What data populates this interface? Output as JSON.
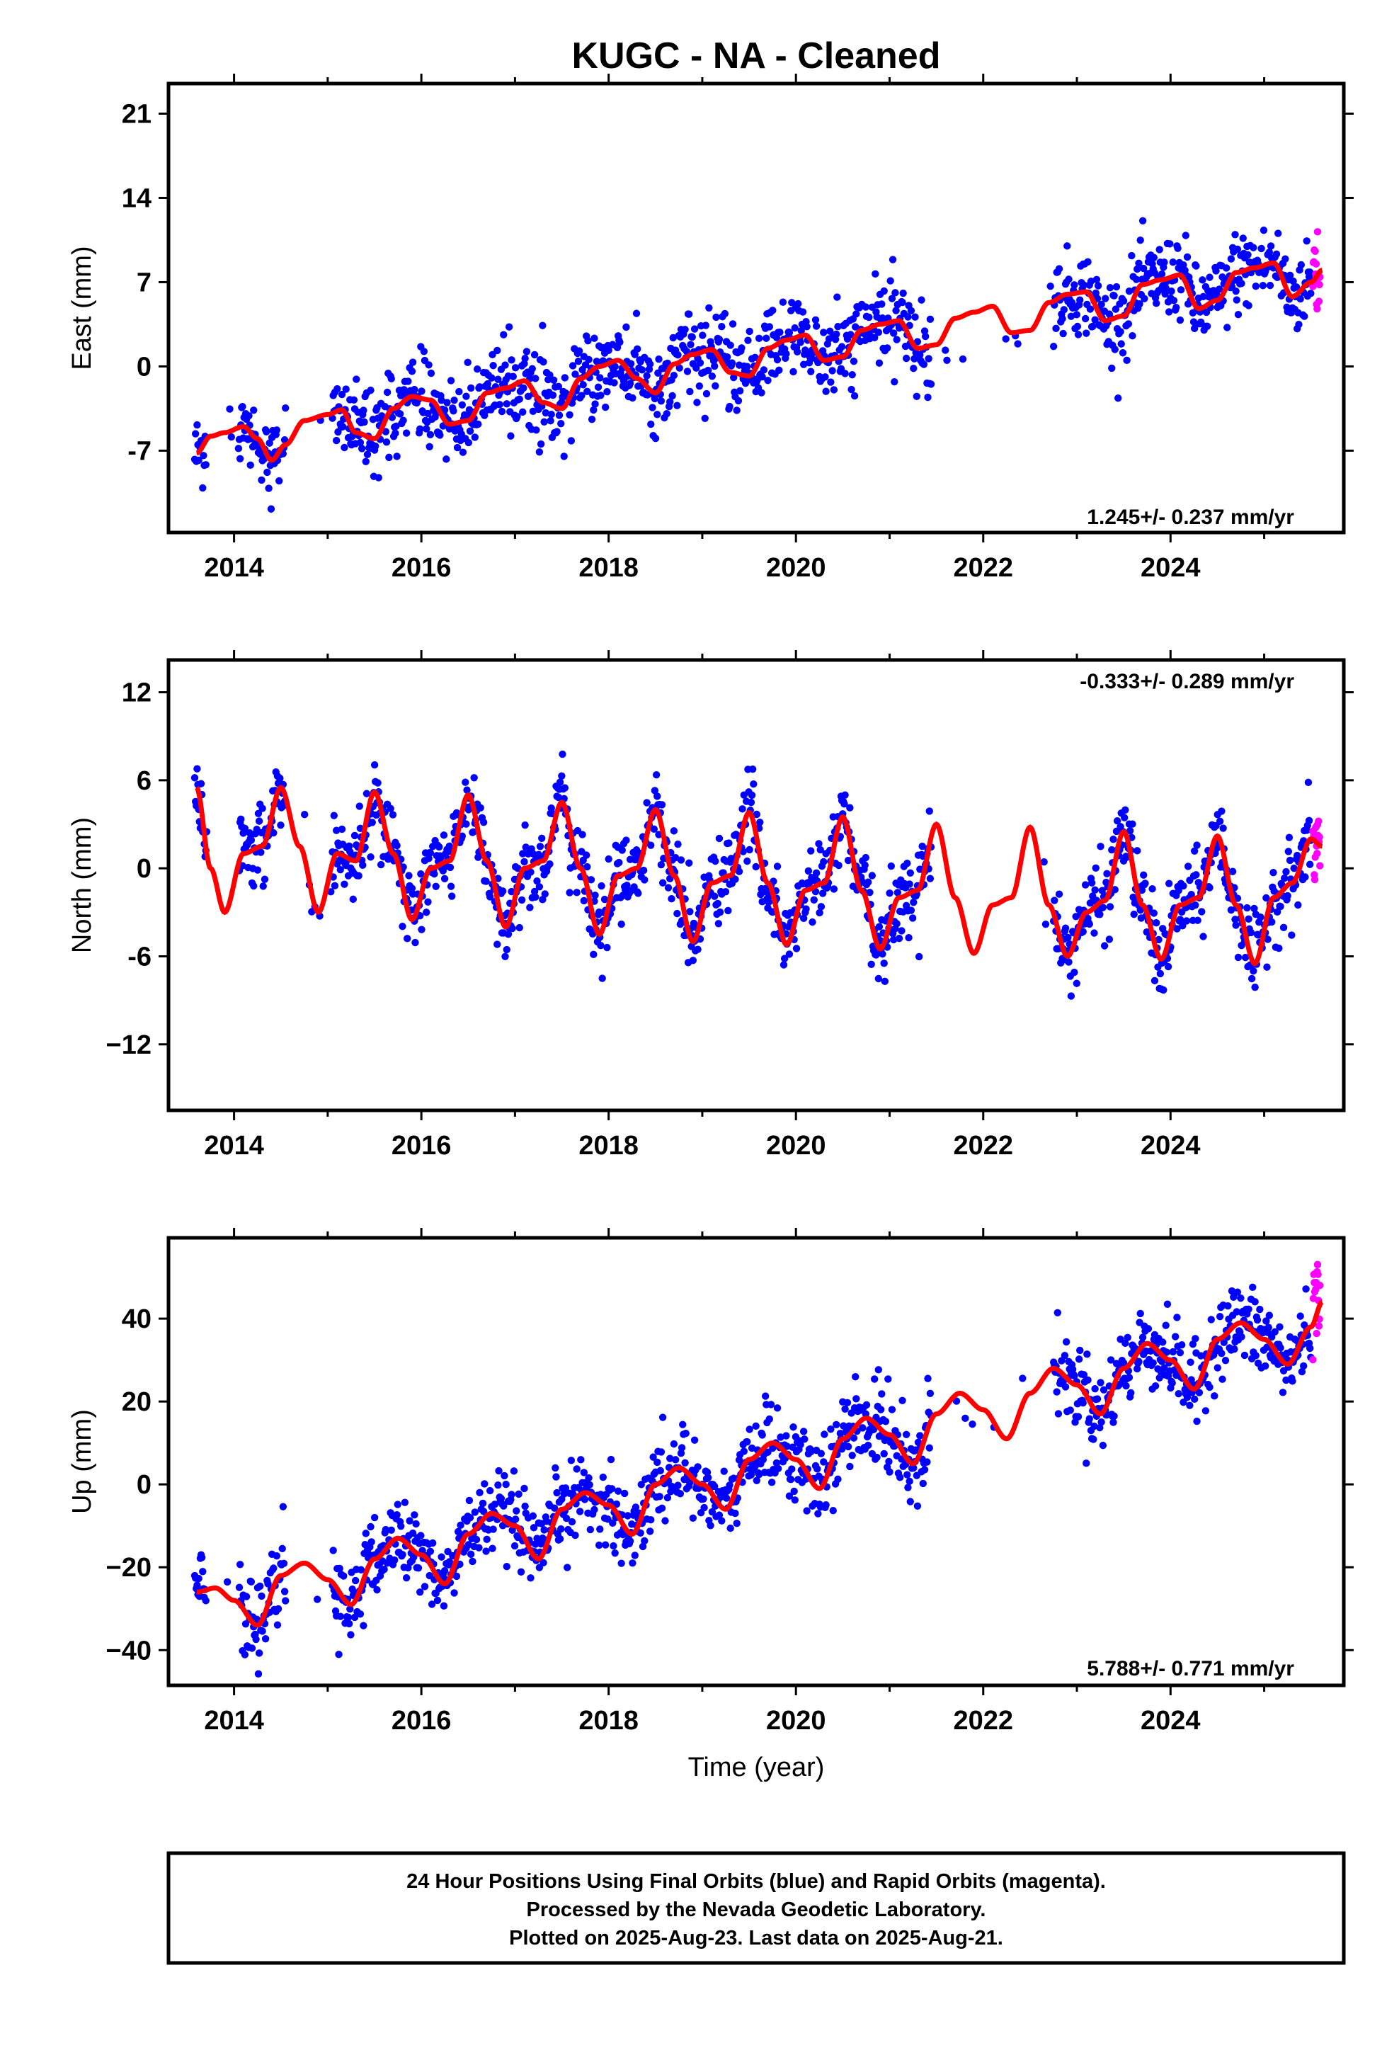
{
  "title": "KUGC  - NA - Cleaned",
  "xlabel": "Time (year)",
  "colors": {
    "final": "#0000ff",
    "rapid": "#ff00ff",
    "model": "#ff0000",
    "frame": "#000000"
  },
  "footer": {
    "line1": "24 Hour Positions Using Final Orbits (blue) and Rapid Orbits (magenta).",
    "line2": "Processed by the Nevada Geodetic Laboratory.",
    "line3": "Plotted on 2025-Aug-23. Last data on 2025-Aug-21."
  },
  "chart_data": [
    {
      "type": "scatter",
      "component": "east",
      "ylabel": "East (mm)",
      "rate": "1.245+/- 0.237 mm/yr",
      "xlim": [
        2013.3,
        2025.85
      ],
      "ylim": [
        -13.8,
        23.5
      ],
      "xticks": [
        2014,
        2016,
        2018,
        2020,
        2022,
        2024
      ],
      "yticks": [
        21,
        14,
        7,
        0,
        -7
      ],
      "ytick_labels": [
        "21",
        "14",
        "7",
        "0",
        "-7"
      ],
      "series": [
        {
          "x": [
            2013.6,
            2013.75,
            2013.9,
            2014.1,
            2014.25,
            2014.4,
            2014.55,
            2014.75,
            2015.0,
            2015.15,
            2015.3,
            2015.5,
            2015.7,
            2015.9,
            2016.1,
            2016.3,
            2016.5,
            2016.7,
            2016.9,
            2017.1,
            2017.3,
            2017.5,
            2017.7,
            2017.9,
            2018.1,
            2018.3,
            2018.5,
            2018.7,
            2018.9,
            2019.1,
            2019.3,
            2019.5,
            2019.7,
            2019.9,
            2020.1,
            2020.3,
            2020.5,
            2020.7,
            2020.9,
            2021.1,
            2021.3,
            2021.5,
            2021.7,
            2021.9,
            2022.1,
            2022.3,
            2022.5,
            2022.7,
            2022.9,
            2023.1,
            2023.3,
            2023.5,
            2023.7,
            2023.9,
            2024.1,
            2024.3,
            2024.5,
            2024.7,
            2024.9,
            2025.1,
            2025.3,
            2025.5,
            2025.62
          ],
          "y": [
            -7.2,
            -5.8,
            -5.5,
            -5.0,
            -6.0,
            -7.8,
            -6.5,
            -4.5,
            -4.0,
            -3.6,
            -5.5,
            -6.0,
            -3.5,
            -2.5,
            -2.8,
            -4.8,
            -4.5,
            -2.2,
            -1.8,
            -1.2,
            -3.0,
            -3.5,
            -1.0,
            0.0,
            0.5,
            -1.0,
            -2.2,
            0.2,
            1.0,
            1.4,
            -0.5,
            -0.8,
            1.5,
            2.2,
            2.6,
            0.5,
            0.8,
            3.0,
            3.5,
            3.8,
            1.5,
            1.8,
            4.0,
            4.5,
            5.0,
            2.8,
            3.0,
            5.3,
            6.0,
            6.2,
            3.8,
            4.2,
            6.8,
            7.2,
            7.6,
            4.8,
            5.5,
            7.8,
            8.2,
            8.6,
            5.8,
            7.0,
            8.0
          ],
          "name": ""
        }
      ]
    },
    {
      "type": "scatter",
      "component": "north",
      "ylabel": "North (mm)",
      "rate": "-0.333+/- 0.289 mm/yr",
      "xlim": [
        2013.3,
        2025.85
      ],
      "ylim": [
        -16.5,
        14.2
      ],
      "xticks": [
        2014,
        2016,
        2018,
        2020,
        2022,
        2024
      ],
      "yticks": [
        12,
        6,
        0,
        -6,
        -12
      ],
      "ytick_labels": [
        "12",
        "6",
        "0",
        "-6",
        "−12"
      ],
      "series": [
        {
          "x": [
            2013.6,
            2013.75,
            2013.9,
            2014.1,
            2014.3,
            2014.5,
            2014.7,
            2014.9,
            2015.1,
            2015.3,
            2015.5,
            2015.7,
            2015.9,
            2016.1,
            2016.3,
            2016.5,
            2016.7,
            2016.9,
            2017.1,
            2017.3,
            2017.5,
            2017.7,
            2017.9,
            2018.1,
            2018.3,
            2018.5,
            2018.7,
            2018.9,
            2019.1,
            2019.3,
            2019.5,
            2019.7,
            2019.9,
            2020.1,
            2020.3,
            2020.5,
            2020.7,
            2020.9,
            2021.1,
            2021.3,
            2021.5,
            2021.7,
            2021.9,
            2022.1,
            2022.3,
            2022.5,
            2022.7,
            2022.9,
            2023.1,
            2023.3,
            2023.5,
            2023.7,
            2023.9,
            2024.1,
            2024.3,
            2024.5,
            2024.7,
            2024.9,
            2025.1,
            2025.3,
            2025.5,
            2025.62
          ],
          "y": [
            5.5,
            0.0,
            -3.0,
            1.0,
            1.5,
            5.5,
            1.5,
            -3.0,
            1.0,
            0.5,
            5.2,
            1.0,
            -3.5,
            0.0,
            0.5,
            5.0,
            0.5,
            -4.0,
            0.0,
            0.5,
            4.5,
            0.0,
            -4.5,
            -0.5,
            0.0,
            4.0,
            -0.5,
            -5.0,
            -1.0,
            -0.5,
            3.8,
            -1.0,
            -5.2,
            -1.5,
            -1.0,
            3.5,
            -1.5,
            -5.5,
            -2.0,
            -1.5,
            3.0,
            -2.0,
            -5.8,
            -2.5,
            -2.0,
            2.8,
            -2.5,
            -6.0,
            -3.0,
            -2.2,
            2.5,
            -2.5,
            -6.2,
            -2.5,
            -2.0,
            2.2,
            -2.5,
            -6.5,
            -2.0,
            -1.0,
            2.0,
            1.5
          ],
          "name": ""
        }
      ]
    },
    {
      "type": "scatter",
      "component": "up",
      "ylabel": "Up (mm)",
      "rate": "5.788+/- 0.771 mm/yr",
      "xlim": [
        2013.3,
        2025.85
      ],
      "ylim": [
        -48.5,
        59.5
      ],
      "xticks": [
        2014,
        2016,
        2018,
        2020,
        2022,
        2024
      ],
      "yticks": [
        40,
        20,
        0,
        -20,
        -40
      ],
      "ytick_labels": [
        "40",
        "20",
        "0",
        "−20",
        "−40"
      ],
      "series": [
        {
          "x": [
            2013.6,
            2013.8,
            2014.0,
            2014.25,
            2014.5,
            2014.75,
            2015.0,
            2015.25,
            2015.5,
            2015.75,
            2016.0,
            2016.25,
            2016.5,
            2016.75,
            2017.0,
            2017.25,
            2017.5,
            2017.75,
            2018.0,
            2018.25,
            2018.5,
            2018.75,
            2019.0,
            2019.25,
            2019.5,
            2019.75,
            2020.0,
            2020.25,
            2020.5,
            2020.75,
            2021.0,
            2021.25,
            2021.5,
            2021.75,
            2022.0,
            2022.25,
            2022.5,
            2022.75,
            2023.0,
            2023.25,
            2023.5,
            2023.75,
            2024.0,
            2024.25,
            2024.5,
            2024.75,
            2025.0,
            2025.25,
            2025.5,
            2025.62
          ],
          "y": [
            -26,
            -25,
            -28,
            -34,
            -22,
            -19,
            -23,
            -29,
            -18,
            -13,
            -17,
            -24,
            -12,
            -7,
            -10,
            -18,
            -6,
            -2,
            -5,
            -12,
            0,
            4,
            0,
            -6,
            6,
            10,
            6,
            -1,
            11,
            16,
            12,
            5,
            17,
            22,
            18,
            11,
            22,
            28,
            24,
            17,
            28,
            34,
            30,
            23,
            35,
            39,
            35,
            29,
            38,
            44
          ],
          "name": ""
        }
      ]
    }
  ]
}
